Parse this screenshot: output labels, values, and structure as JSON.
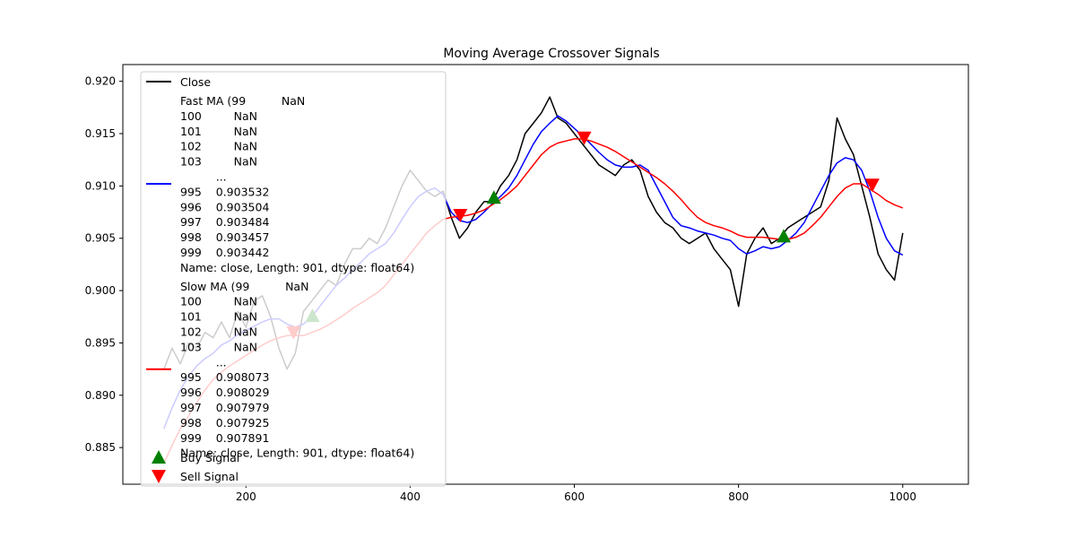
{
  "chart_data": {
    "type": "line",
    "title": "Moving Average Crossover Signals",
    "xlabel": "",
    "ylabel": "",
    "xlim": [
      50,
      1080
    ],
    "ylim": [
      0.8815,
      0.9216
    ],
    "x_ticks": [
      200,
      400,
      600,
      800,
      1000
    ],
    "x_tick_labels": [
      "200",
      "400",
      "600",
      "800",
      "1000"
    ],
    "y_ticks": [
      0.885,
      0.89,
      0.895,
      0.9,
      0.905,
      0.91,
      0.915,
      0.92
    ],
    "y_tick_labels": [
      "0.885",
      "0.890",
      "0.895",
      "0.900",
      "0.905",
      "0.910",
      "0.915",
      "0.920"
    ],
    "grid": false,
    "legend_position": "upper-left",
    "series": [
      {
        "name": "Close",
        "color": "#000000",
        "x": [
          100,
          110,
          120,
          130,
          140,
          150,
          160,
          170,
          180,
          190,
          200,
          210,
          220,
          230,
          240,
          250,
          260,
          270,
          280,
          290,
          300,
          310,
          320,
          330,
          340,
          350,
          360,
          370,
          380,
          390,
          400,
          410,
          420,
          430,
          440,
          450,
          460,
          470,
          480,
          490,
          500,
          510,
          520,
          530,
          540,
          550,
          560,
          570,
          580,
          590,
          600,
          610,
          620,
          630,
          640,
          650,
          660,
          670,
          680,
          690,
          700,
          710,
          720,
          730,
          740,
          750,
          760,
          770,
          780,
          790,
          800,
          810,
          820,
          830,
          840,
          850,
          860,
          870,
          880,
          890,
          900,
          910,
          920,
          930,
          940,
          950,
          960,
          970,
          980,
          990,
          1000
        ],
        "y": [
          0.8925,
          0.8945,
          0.893,
          0.895,
          0.8945,
          0.896,
          0.8955,
          0.897,
          0.8955,
          0.898,
          0.8965,
          0.899,
          0.8995,
          0.8975,
          0.8945,
          0.8925,
          0.894,
          0.898,
          0.899,
          0.9,
          0.901,
          0.9005,
          0.9025,
          0.904,
          0.904,
          0.905,
          0.9045,
          0.906,
          0.908,
          0.91,
          0.9115,
          0.9105,
          0.9095,
          0.909,
          0.9095,
          0.907,
          0.905,
          0.906,
          0.9075,
          0.9085,
          0.9085,
          0.91,
          0.911,
          0.9125,
          0.915,
          0.916,
          0.917,
          0.9185,
          0.9165,
          0.916,
          0.915,
          0.914,
          0.913,
          0.912,
          0.9115,
          0.911,
          0.912,
          0.9125,
          0.9115,
          0.909,
          0.9075,
          0.9065,
          0.906,
          0.905,
          0.9045,
          0.905,
          0.9055,
          0.904,
          0.903,
          0.902,
          0.8985,
          0.9035,
          0.905,
          0.906,
          0.9045,
          0.905,
          0.906,
          0.9065,
          0.907,
          0.9075,
          0.908,
          0.9105,
          0.9165,
          0.9145,
          0.913,
          0.91,
          0.907,
          0.9035,
          0.902,
          0.901,
          0.9055
        ]
      },
      {
        "name": "Fast MA (99          NaN\n100         NaN\n101         NaN\n102         NaN\n103         NaN\n          ...   \n995    0.903532\n996    0.903504\n997    0.903484\n998    0.903457\n999    0.903442\nName: close, Length: 901, dtype: float64)",
        "color": "#0000ff",
        "x": [
          100,
          110,
          120,
          130,
          140,
          150,
          160,
          170,
          180,
          190,
          200,
          210,
          220,
          230,
          240,
          250,
          260,
          270,
          280,
          290,
          300,
          310,
          320,
          330,
          340,
          350,
          360,
          370,
          380,
          390,
          400,
          410,
          420,
          430,
          440,
          450,
          460,
          470,
          480,
          490,
          500,
          510,
          520,
          530,
          540,
          550,
          560,
          570,
          580,
          590,
          600,
          610,
          620,
          630,
          640,
          650,
          660,
          670,
          680,
          690,
          700,
          710,
          720,
          730,
          740,
          750,
          760,
          770,
          780,
          790,
          800,
          810,
          820,
          830,
          840,
          850,
          860,
          870,
          880,
          890,
          900,
          910,
          920,
          930,
          940,
          950,
          960,
          970,
          980,
          990,
          1000
        ],
        "y": [
          0.8868,
          0.8888,
          0.8905,
          0.8918,
          0.8928,
          0.8935,
          0.894,
          0.8948,
          0.8952,
          0.8958,
          0.8962,
          0.8966,
          0.897,
          0.8973,
          0.8973,
          0.8968,
          0.8965,
          0.8968,
          0.8975,
          0.8985,
          0.8995,
          0.9005,
          0.9012,
          0.902,
          0.9027,
          0.9035,
          0.904,
          0.9045,
          0.9055,
          0.9068,
          0.908,
          0.909,
          0.9095,
          0.9098,
          0.9092,
          0.9075,
          0.9067,
          0.9065,
          0.9068,
          0.9075,
          0.9083,
          0.909,
          0.9098,
          0.911,
          0.9125,
          0.914,
          0.9152,
          0.916,
          0.9167,
          0.9162,
          0.9155,
          0.9148,
          0.914,
          0.9132,
          0.9125,
          0.912,
          0.9118,
          0.9118,
          0.912,
          0.9115,
          0.91,
          0.9085,
          0.907,
          0.9062,
          0.906,
          0.9057,
          0.9055,
          0.9053,
          0.905,
          0.9048,
          0.904,
          0.9035,
          0.9038,
          0.9042,
          0.904,
          0.9042,
          0.9048,
          0.9055,
          0.9065,
          0.908,
          0.9095,
          0.911,
          0.9122,
          0.9127,
          0.9125,
          0.9115,
          0.9095,
          0.907,
          0.905,
          0.9038,
          0.9034
        ]
      },
      {
        "name": "Slow MA (99          NaN\n100         NaN\n101         NaN\n102         NaN\n103         NaN\n          ...   \n995    0.908073\n996    0.908029\n997    0.907979\n998    0.907925\n999    0.907891\nName: close, Length: 901, dtype: float64)",
        "color": "#ff0000",
        "x": [
          100,
          110,
          120,
          130,
          140,
          150,
          160,
          170,
          180,
          190,
          200,
          210,
          220,
          230,
          240,
          250,
          260,
          270,
          280,
          290,
          300,
          310,
          320,
          330,
          340,
          350,
          360,
          370,
          380,
          390,
          400,
          410,
          420,
          430,
          440,
          450,
          460,
          470,
          480,
          490,
          500,
          510,
          520,
          530,
          540,
          550,
          560,
          570,
          580,
          590,
          600,
          610,
          620,
          630,
          640,
          650,
          660,
          670,
          680,
          690,
          700,
          710,
          720,
          730,
          740,
          750,
          760,
          770,
          780,
          790,
          800,
          810,
          820,
          830,
          840,
          850,
          860,
          870,
          880,
          890,
          900,
          910,
          920,
          930,
          940,
          950,
          960,
          970,
          980,
          990,
          1000
        ],
        "y": [
          0.8835,
          0.8852,
          0.8868,
          0.888,
          0.8893,
          0.8905,
          0.8915,
          0.8922,
          0.8928,
          0.8933,
          0.8938,
          0.8943,
          0.8948,
          0.8952,
          0.8955,
          0.8957,
          0.8957,
          0.8957,
          0.896,
          0.8963,
          0.8967,
          0.8972,
          0.8977,
          0.8983,
          0.8988,
          0.8993,
          0.8998,
          0.9005,
          0.9015,
          0.9025,
          0.9035,
          0.9045,
          0.9055,
          0.9062,
          0.9068,
          0.907,
          0.9071,
          0.9072,
          0.9074,
          0.9077,
          0.9082,
          0.9087,
          0.9093,
          0.91,
          0.911,
          0.912,
          0.913,
          0.9137,
          0.9141,
          0.9143,
          0.9145,
          0.9145,
          0.9143,
          0.914,
          0.9137,
          0.9133,
          0.9128,
          0.9123,
          0.9118,
          0.9113,
          0.9108,
          0.9102,
          0.9095,
          0.9087,
          0.9078,
          0.907,
          0.9065,
          0.9062,
          0.906,
          0.9057,
          0.9053,
          0.9051,
          0.9051,
          0.9051,
          0.905,
          0.9049,
          0.9049,
          0.9051,
          0.9055,
          0.9062,
          0.907,
          0.908,
          0.909,
          0.9098,
          0.9102,
          0.9102,
          0.9097,
          0.9092,
          0.9086,
          0.9082,
          0.9079
        ]
      }
    ],
    "buy_signals": {
      "name": "Buy Signal",
      "color": "#008000",
      "x": [
        281,
        502,
        855
      ],
      "y": [
        0.8976,
        0.9089,
        0.9052
      ]
    },
    "sell_signals": {
      "name": "Sell Signal",
      "color": "#ff0000",
      "x": [
        258,
        461,
        612,
        963
      ],
      "y": [
        0.896,
        0.9072,
        0.9146,
        0.9101
      ]
    }
  }
}
